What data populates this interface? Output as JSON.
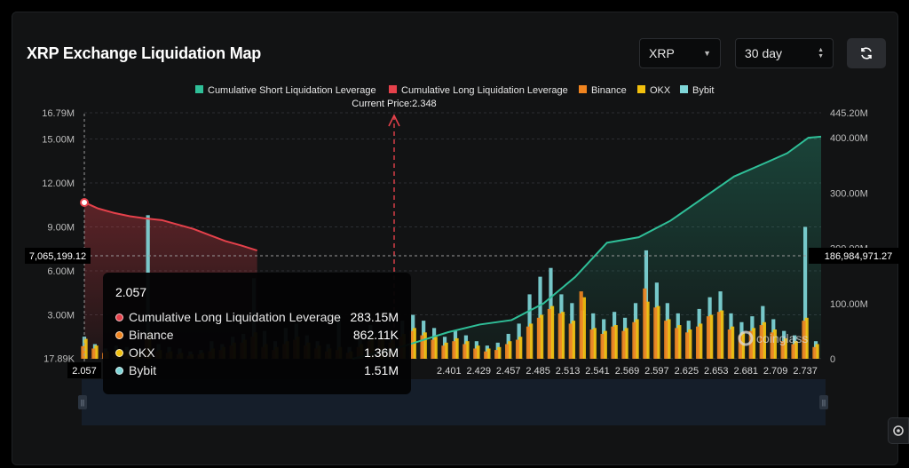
{
  "header": {
    "title": "XRP Exchange Liquidation Map",
    "coin_select": "XRP",
    "period_select": "30 day"
  },
  "colors": {
    "short": "#2fbf98",
    "long": "#e5414b",
    "binance": "#f0841f",
    "okx": "#f2c00d",
    "bybit": "#7fd6d8",
    "background": "#121314"
  },
  "chart_data": {
    "type": "bar",
    "legend": [
      "Cumulative Short Liquidation Leverage",
      "Cumulative Long Liquidation Leverage",
      "Binance",
      "OKX",
      "Bybit"
    ],
    "current_price_label": "Current Price:2.348",
    "current_price": 2.348,
    "x_ticks": [
      "2.057",
      "2.401",
      "2.429",
      "2.457",
      "2.485",
      "2.513",
      "2.541",
      "2.569",
      "2.597",
      "2.625",
      "2.653",
      "2.681",
      "2.709",
      "2.737"
    ],
    "x_range": [
      2.057,
      2.752
    ],
    "y_left_ticks": [
      "17.89K",
      "3.00M",
      "6.00M",
      "9.00M",
      "12.00M",
      "15.00M",
      "16.79M"
    ],
    "y_left_range": [
      0,
      16790000
    ],
    "y_right_ticks": [
      "0",
      "100.00M",
      "200.00M",
      "300.00M",
      "400.00M",
      "445.20M"
    ],
    "y_right_range": [
      0,
      445200000
    ],
    "crosshair": {
      "left_label": "7,065,199.12",
      "right_label": "186,984,971.27",
      "x_label": "2.057"
    },
    "long_cumulative": {
      "x": [
        2.057,
        2.07,
        2.085,
        2.1,
        2.115,
        2.13,
        2.145,
        2.16,
        2.175,
        2.19,
        2.205,
        2.22
      ],
      "y": [
        283.15,
        272,
        264,
        258,
        254,
        251,
        243,
        235,
        224,
        213,
        205,
        196
      ]
    },
    "short_cumulative": {
      "x": [
        2.31,
        2.35,
        2.4,
        2.43,
        2.46,
        2.49,
        2.52,
        2.55,
        2.58,
        2.61,
        2.64,
        2.67,
        2.7,
        2.72,
        2.74,
        2.752
      ],
      "y": [
        0,
        18,
        48,
        62,
        70,
        100,
        148,
        210,
        220,
        250,
        290,
        330,
        355,
        372,
        400,
        402
      ]
    },
    "bars": {
      "sample_x": [
        2.057,
        2.067,
        2.077,
        2.087,
        2.097,
        2.107,
        2.117,
        2.127,
        2.137,
        2.147,
        2.157,
        2.167,
        2.177,
        2.187,
        2.197,
        2.207,
        2.217,
        2.227,
        2.237,
        2.247,
        2.257,
        2.267,
        2.277,
        2.287,
        2.297,
        2.307,
        2.317,
        2.327,
        2.337,
        2.347,
        2.357,
        2.367,
        2.377,
        2.387,
        2.397,
        2.407,
        2.417,
        2.427,
        2.437,
        2.447,
        2.457,
        2.467,
        2.477,
        2.487,
        2.497,
        2.507,
        2.517,
        2.527,
        2.537,
        2.547,
        2.557,
        2.567,
        2.577,
        2.587,
        2.597,
        2.607,
        2.617,
        2.627,
        2.637,
        2.647,
        2.657,
        2.667,
        2.677,
        2.687,
        2.697,
        2.707,
        2.717,
        2.727,
        2.737,
        2.747
      ],
      "binance": [
        0.86,
        0.7,
        0.4,
        0.5,
        0.45,
        0.3,
        1.5,
        0.5,
        0.4,
        0.3,
        0.2,
        0.3,
        0.5,
        0.6,
        0.9,
        1.1,
        1.5,
        0.8,
        0.6,
        1.0,
        1.3,
        0.9,
        0.7,
        0.5,
        0.6,
        0.4,
        0.8,
        1.2,
        1.4,
        1.1,
        1.5,
        1.9,
        1.6,
        1.3,
        0.9,
        1.2,
        1.0,
        0.7,
        0.5,
        0.6,
        1.0,
        1.3,
        2.2,
        2.8,
        3.4,
        3.1,
        2.4,
        4.6,
        2.0,
        1.7,
        2.2,
        1.9,
        2.5,
        4.8,
        3.5,
        2.6,
        2.1,
        1.8,
        2.2,
        2.9,
        3.2,
        2.0,
        1.6,
        1.9,
        2.3,
        1.8,
        1.2,
        1.0,
        2.6,
        0.8
      ],
      "okx": [
        1.36,
        0.9,
        0.5,
        0.6,
        0.5,
        0.4,
        1.8,
        0.6,
        0.5,
        0.4,
        0.3,
        0.4,
        0.7,
        0.8,
        1.1,
        1.3,
        1.8,
        1.0,
        0.8,
        1.2,
        1.5,
        1.1,
        0.9,
        0.7,
        0.8,
        0.5,
        1.0,
        1.5,
        1.6,
        1.3,
        1.7,
        2.1,
        1.8,
        1.5,
        1.1,
        1.4,
        1.2,
        0.9,
        0.7,
        0.8,
        1.2,
        1.5,
        2.4,
        3.0,
        3.6,
        3.2,
        2.6,
        4.2,
        2.1,
        1.9,
        2.3,
        2.1,
        2.7,
        3.9,
        3.6,
        2.7,
        2.3,
        2.0,
        2.4,
        3.0,
        3.3,
        2.2,
        1.8,
        2.1,
        2.5,
        2.0,
        1.4,
        1.2,
        2.8,
        1.0
      ],
      "bybit": [
        1.51,
        1.0,
        0.7,
        0.9,
        0.8,
        0.6,
        9.8,
        1.0,
        0.8,
        0.7,
        0.5,
        0.6,
        1.2,
        1.0,
        1.5,
        1.7,
        5.5,
        1.9,
        1.2,
        2.1,
        2.4,
        1.6,
        1.2,
        1.0,
        3.0,
        0.8,
        1.4,
        2.3,
        1.9,
        1.6,
        2.6,
        3.0,
        2.6,
        2.1,
        1.5,
        1.9,
        1.6,
        1.2,
        0.9,
        1.1,
        1.7,
        2.4,
        4.4,
        5.6,
        6.2,
        4.4,
        3.8,
        3.3,
        3.1,
        2.7,
        3.2,
        2.8,
        3.8,
        7.4,
        5.2,
        3.8,
        3.1,
        2.6,
        3.4,
        4.2,
        4.6,
        3.1,
        2.5,
        2.9,
        3.6,
        2.7,
        1.9,
        1.6,
        9.0,
        1.2
      ]
    }
  },
  "tooltip": {
    "title": "2.057",
    "rows": [
      {
        "label": "Cumulative Long Liquidation Leverage",
        "value": "283.15M"
      },
      {
        "label": "Binance",
        "value": "862.11K"
      },
      {
        "label": "OKX",
        "value": "1.36M"
      },
      {
        "label": "Bybit",
        "value": "1.51M"
      }
    ]
  },
  "watermark": "coinglass"
}
